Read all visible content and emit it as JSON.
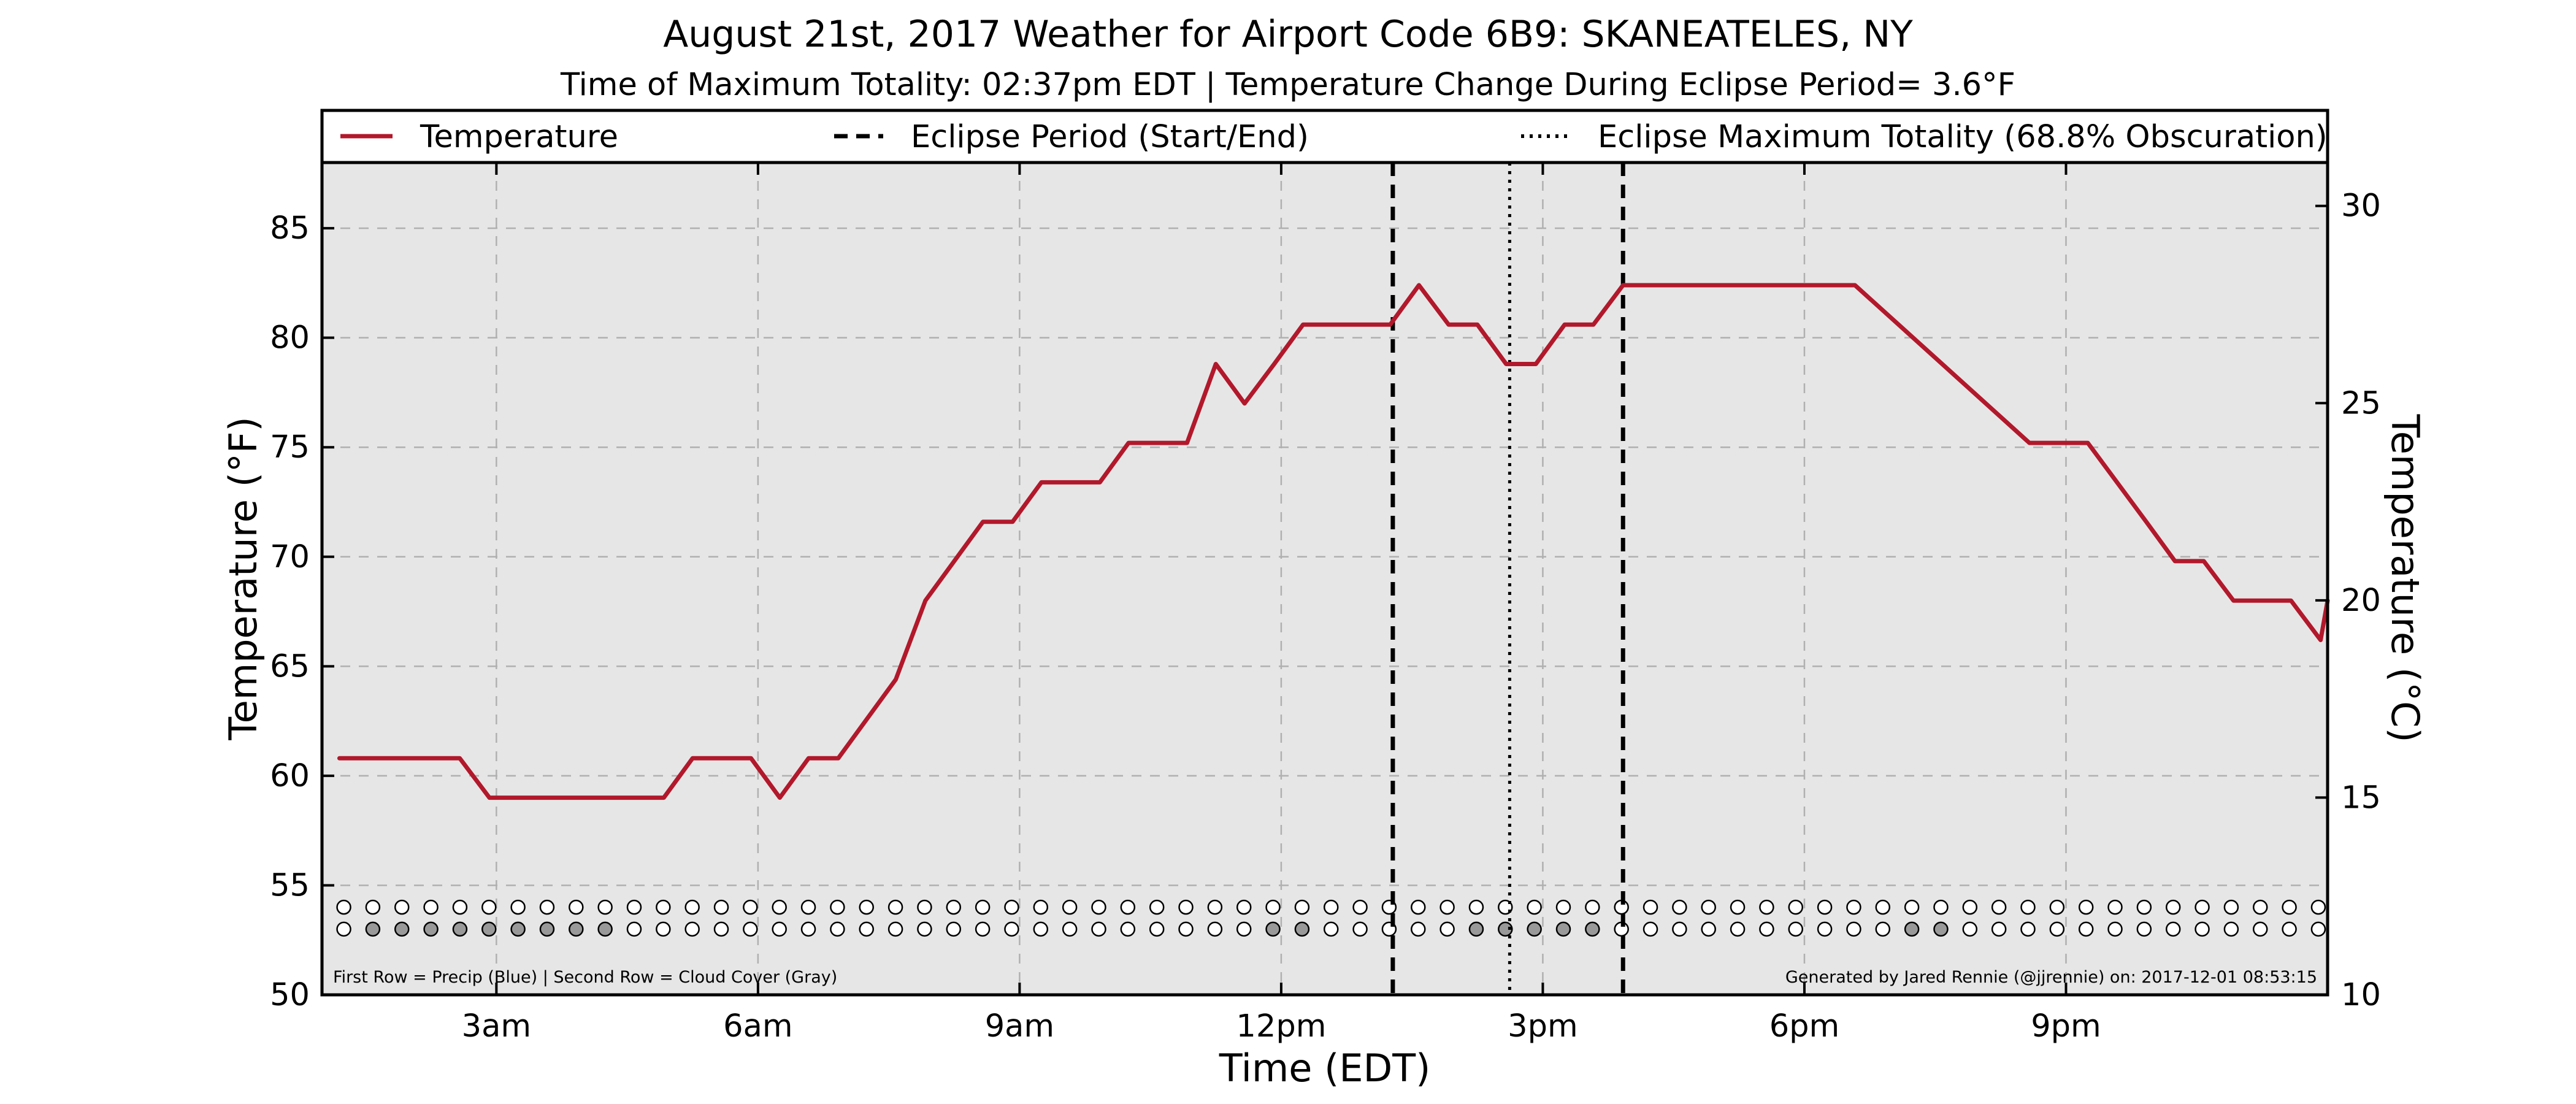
{
  "chart_data": {
    "type": "line",
    "title": "August 21st, 2017 Weather for Airport Code 6B9: SKANEATELES, NY",
    "subtitle": "Time of Maximum Totality: 02:37pm EDT | Temperature Change During Eclipse Period= 3.6°F",
    "xlabel": "Time (EDT)",
    "ylabel": "Temperature (°F)",
    "ylabel_right": "Temperature (°C)",
    "xlim": [
      1.0,
      24.0
    ],
    "ylim": [
      50,
      88
    ],
    "ylim_right": [
      10,
      31.1
    ],
    "grid": true,
    "x_ticks": [
      {
        "x": 3,
        "label": "3am"
      },
      {
        "x": 6,
        "label": "6am"
      },
      {
        "x": 9,
        "label": "9am"
      },
      {
        "x": 12,
        "label": "12pm"
      },
      {
        "x": 15,
        "label": "3pm"
      },
      {
        "x": 18,
        "label": "6pm"
      },
      {
        "x": 21,
        "label": "9pm"
      }
    ],
    "y_ticks": [
      50,
      55,
      60,
      65,
      70,
      75,
      80,
      85
    ],
    "y_ticks_right": [
      10,
      15,
      20,
      25,
      30
    ],
    "legend": {
      "placement": "top",
      "entries": [
        {
          "label": "Temperature",
          "style": "solid"
        },
        {
          "label": "Eclipse Period (Start/End)",
          "style": "dashed"
        },
        {
          "label": "Eclipse Maximum Totality (68.8% Obscuration)",
          "style": "dotted"
        }
      ]
    },
    "series": [
      {
        "name": "Temperature",
        "color": "#b2182b",
        "points": [
          [
            1.2,
            60.8
          ],
          [
            2.25,
            60.8
          ],
          [
            2.58,
            60.8
          ],
          [
            2.92,
            59.0
          ],
          [
            3.25,
            59.0
          ],
          [
            4.25,
            59.0
          ],
          [
            4.92,
            59.0
          ],
          [
            5.25,
            60.8
          ],
          [
            5.92,
            60.8
          ],
          [
            6.25,
            59.0
          ],
          [
            6.58,
            60.8
          ],
          [
            6.92,
            60.8
          ],
          [
            7.58,
            64.4
          ],
          [
            7.92,
            68.0
          ],
          [
            8.58,
            71.6
          ],
          [
            8.92,
            71.6
          ],
          [
            9.25,
            73.4
          ],
          [
            9.92,
            73.4
          ],
          [
            10.25,
            75.2
          ],
          [
            10.92,
            75.2
          ],
          [
            11.25,
            78.8
          ],
          [
            11.58,
            77.0
          ],
          [
            11.92,
            78.8
          ],
          [
            12.25,
            80.6
          ],
          [
            12.92,
            80.6
          ],
          [
            13.25,
            80.6
          ],
          [
            13.58,
            82.4
          ],
          [
            13.92,
            80.6
          ],
          [
            14.25,
            80.6
          ],
          [
            14.58,
            78.8
          ],
          [
            14.92,
            78.8
          ],
          [
            15.25,
            80.6
          ],
          [
            15.58,
            80.6
          ],
          [
            15.92,
            82.4
          ],
          [
            16.58,
            82.4
          ],
          [
            17.58,
            82.4
          ],
          [
            18.58,
            82.4
          ],
          [
            19.58,
            78.8
          ],
          [
            20.58,
            75.2
          ],
          [
            20.92,
            75.2
          ],
          [
            21.25,
            75.2
          ],
          [
            21.92,
            71.6
          ],
          [
            22.25,
            69.8
          ],
          [
            22.58,
            69.8
          ],
          [
            22.92,
            68.0
          ],
          [
            23.58,
            68.0
          ],
          [
            23.92,
            66.2
          ],
          [
            24.25,
            68.0
          ],
          [
            24.58,
            68.0
          ]
        ]
      }
    ],
    "eclipse": {
      "start": 13.28,
      "max": 14.62,
      "end": 15.92
    },
    "markers": {
      "start": 1.25,
      "step": 0.333,
      "count": 69,
      "precip_y": 54.0,
      "cloud_y": 53.0,
      "precip_color": "#ffffff",
      "cloud_clear_color": "#ffffff",
      "cloud_covered_color": "#999999",
      "cloud_covered": [
        1,
        2,
        3,
        4,
        5,
        6,
        7,
        8,
        9,
        32,
        33,
        39,
        40,
        41,
        42,
        43,
        54,
        55
      ]
    },
    "footnote_left": "First Row = Precip (Blue) | Second Row = Cloud Cover (Gray)",
    "footnote_right": "Generated by Jared Rennie (@jjrennie) on: 2017-12-01 08:53:15",
    "colors": {
      "temperature": "#b2182b",
      "plot_background": "#e6e6e6",
      "grid": "#b0b0b0"
    }
  }
}
